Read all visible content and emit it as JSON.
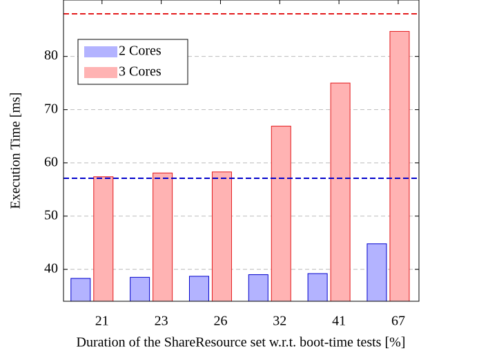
{
  "chart_data": {
    "type": "bar",
    "xlabel": "Duration of the ShareResource set w.r.t. boot-time tests [%]",
    "ylabel": "Execution Time [ms]",
    "categories": [
      "21",
      "23",
      "26",
      "32",
      "41",
      "67"
    ],
    "series": [
      {
        "name": "2 Cores",
        "color": "#b3b3ff",
        "edge": "#0000cc",
        "values": [
          38.3,
          38.5,
          38.7,
          39.0,
          39.2,
          44.8
        ]
      },
      {
        "name": "3 Cores",
        "color": "#ffb3b3",
        "edge": "#e31a1c",
        "values": [
          57.4,
          58.1,
          58.3,
          66.9,
          75.0,
          84.7
        ]
      }
    ],
    "reference_lines": [
      {
        "value": 88,
        "color": "#e31a1c"
      },
      {
        "value": 57.1,
        "color": "#0000cc"
      }
    ],
    "ylim": [
      34,
      90.6
    ],
    "yticks": [
      40,
      50,
      60,
      70,
      80
    ],
    "grid": true,
    "legend": "upper left"
  }
}
